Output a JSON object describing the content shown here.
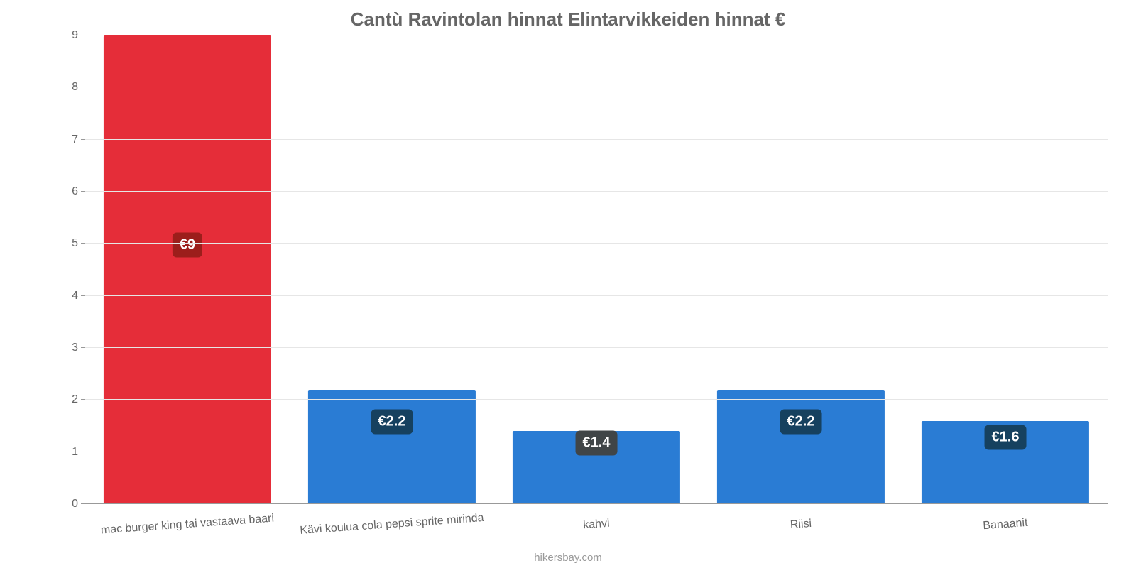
{
  "chart": {
    "type": "bar",
    "title": "Cantù Ravintolan hinnat Elintarvikkeiden hinnat €",
    "title_fontsize": 26,
    "title_color": "#666666",
    "footer": "hikersbay.com",
    "footer_color": "#999999",
    "background_color": "#ffffff",
    "grid_color": "#e6e6e6",
    "axis_color": "#999999",
    "tick_label_color": "#666666",
    "tick_fontsize": 16,
    "ylim": [
      0,
      9
    ],
    "ytick_step": 1,
    "yticks": [
      "0",
      "1",
      "2",
      "3",
      "4",
      "5",
      "6",
      "7",
      "8",
      "9"
    ],
    "bar_width_ratio": 0.82,
    "categories": [
      "mac burger king tai vastaava baari",
      "Kävi koulua cola pepsi sprite mirinda",
      "kahvi",
      "Riisi",
      "Banaanit"
    ],
    "values": [
      9,
      2.2,
      1.4,
      2.2,
      1.6
    ],
    "value_labels": [
      "€9",
      "€2.2",
      "€1.4",
      "€2.2",
      "€1.6"
    ],
    "bar_colors": [
      "#e52d39",
      "#2a7cd4",
      "#2a7cd4",
      "#2a7cd4",
      "#2a7cd4"
    ],
    "label_bg_colors": [
      "#9c1e1b",
      "#16415f",
      "#404547",
      "#16415f",
      "#16415f"
    ],
    "label_text_color": "#ffffff",
    "label_fontsize": 20,
    "x_label_rotation_deg": -4
  }
}
